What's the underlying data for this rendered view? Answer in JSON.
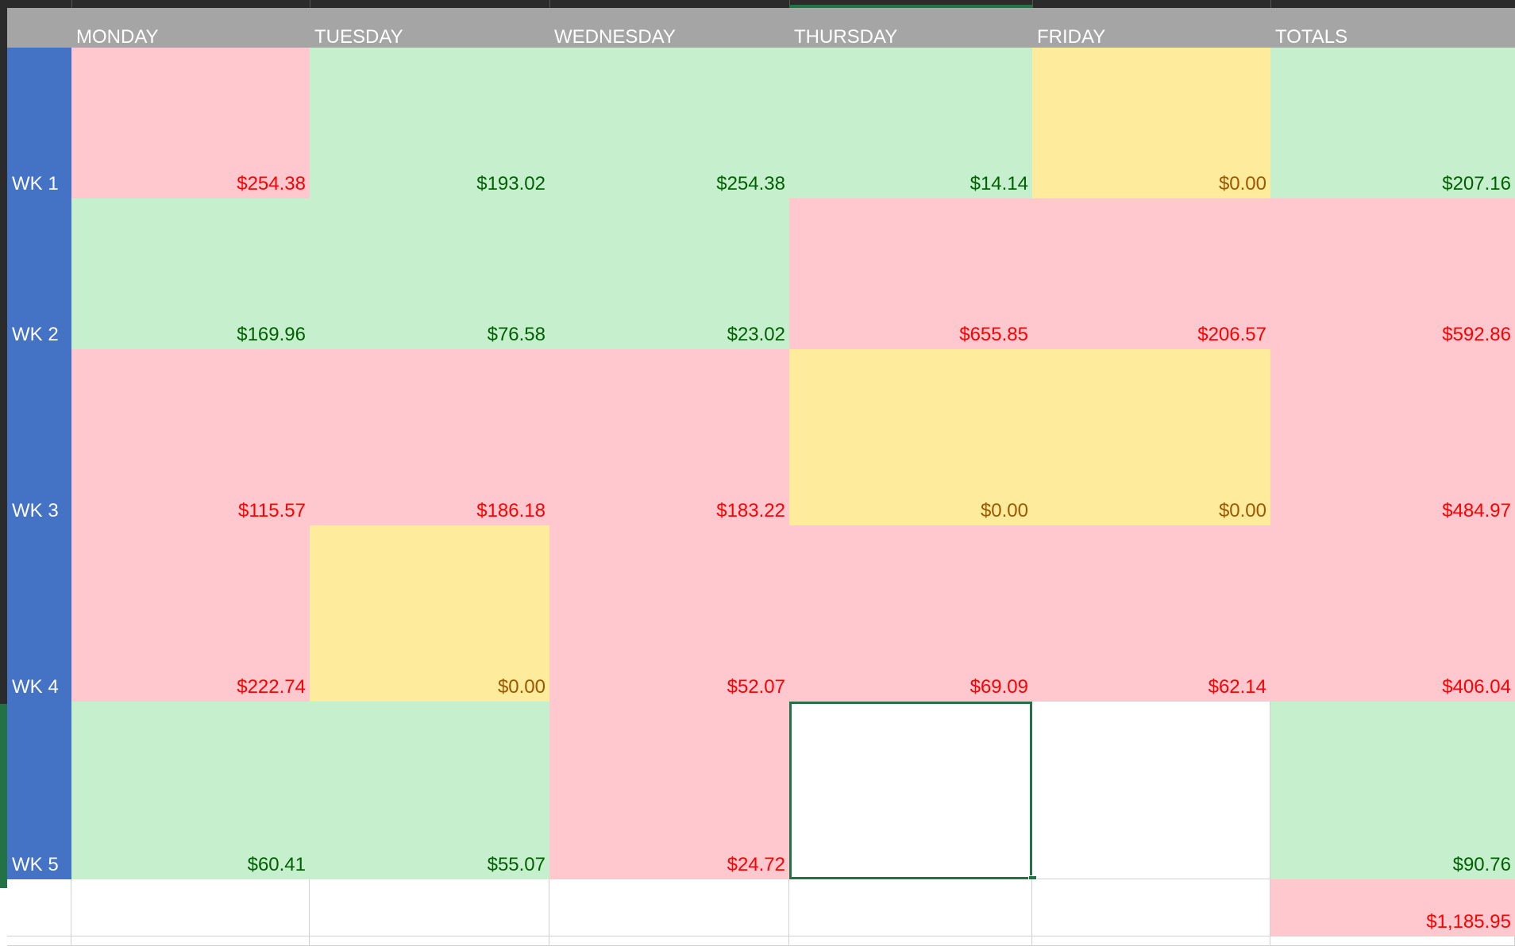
{
  "header": {
    "days": [
      "MONDAY",
      "TUESDAY",
      "WEDNESDAY",
      "THURSDAY",
      "FRIDAY",
      "TOTALS"
    ]
  },
  "colors": {
    "header_bg": "#a5a5a5",
    "row_label_bg": "#4472c4",
    "good_fill": "#c6efce",
    "good_text": "#006100",
    "bad_fill": "#ffc7ce",
    "bad_text": "#ff0000",
    "zero_fill": "#ffeb9c",
    "zero_text": "#9c5700",
    "selection": "#217346"
  },
  "rows": [
    {
      "label": "WK 1",
      "cells": [
        {
          "value": "$254.38",
          "status": "bad"
        },
        {
          "value": "$193.02",
          "status": "good"
        },
        {
          "value": "$254.38",
          "status": "good"
        },
        {
          "value": "$14.14",
          "status": "good"
        },
        {
          "value": "$0.00",
          "status": "zero"
        },
        {
          "value": "$207.16",
          "status": "good"
        }
      ]
    },
    {
      "label": "WK 2",
      "cells": [
        {
          "value": "$169.96",
          "status": "good"
        },
        {
          "value": "$76.58",
          "status": "good"
        },
        {
          "value": "$23.02",
          "status": "good"
        },
        {
          "value": "$655.85",
          "status": "bad"
        },
        {
          "value": "$206.57",
          "status": "bad"
        },
        {
          "value": "$592.86",
          "status": "bad"
        }
      ]
    },
    {
      "label": "WK 3",
      "cells": [
        {
          "value": "$115.57",
          "status": "bad"
        },
        {
          "value": "$186.18",
          "status": "bad"
        },
        {
          "value": "$183.22",
          "status": "bad"
        },
        {
          "value": "$0.00",
          "status": "zero"
        },
        {
          "value": "$0.00",
          "status": "zero"
        },
        {
          "value": "$484.97",
          "status": "bad"
        }
      ]
    },
    {
      "label": "WK 4",
      "cells": [
        {
          "value": "$222.74",
          "status": "bad"
        },
        {
          "value": "$0.00",
          "status": "zero"
        },
        {
          "value": "$52.07",
          "status": "bad"
        },
        {
          "value": "$69.09",
          "status": "bad"
        },
        {
          "value": "$62.14",
          "status": "bad"
        },
        {
          "value": "$406.04",
          "status": "bad"
        }
      ]
    },
    {
      "label": "WK 5",
      "cells": [
        {
          "value": "$60.41",
          "status": "good"
        },
        {
          "value": "$55.07",
          "status": "good"
        },
        {
          "value": "$24.72",
          "status": "bad"
        },
        {
          "value": "",
          "status": "blank"
        },
        {
          "value": "",
          "status": "blank"
        },
        {
          "value": "$90.76",
          "status": "good"
        }
      ]
    }
  ],
  "grand_total": {
    "value": "$1,185.95",
    "status": "bad"
  }
}
